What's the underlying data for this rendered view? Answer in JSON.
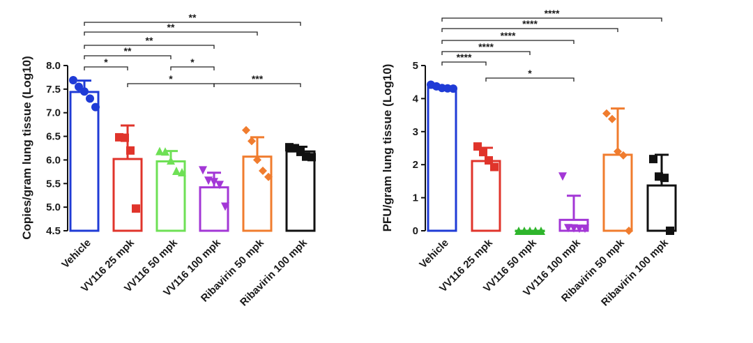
{
  "chart_data": [
    {
      "type": "bar",
      "ylabel": "Copies/gram lung tissue (Log10)",
      "ylim": [
        4.5,
        8.0
      ],
      "yticks": [
        4.5,
        5.0,
        5.5,
        6.0,
        6.5,
        7.0,
        7.5,
        8.0
      ],
      "ytick_labels": [
        "4.5",
        "5.0",
        "5.5",
        "6.0",
        "6.5",
        "7.0",
        "7.5",
        "8.0"
      ],
      "categories": [
        "Vehicle",
        "VV116 25 mpk",
        "VV116 50 mpk",
        "VV116 100 mpk",
        "Ribavirin 50 mpk",
        "Ribavirin 100 mpk"
      ],
      "values": [
        7.44,
        6.02,
        5.97,
        5.42,
        6.07,
        6.18
      ],
      "errors": [
        0.24,
        0.71,
        0.22,
        0.31,
        0.41,
        0.1
      ],
      "points": [
        [
          7.69,
          7.55,
          7.45,
          7.3,
          7.12
        ],
        [
          6.48,
          6.47,
          6.2,
          4.97
        ],
        [
          6.19,
          6.18,
          5.99,
          5.77,
          5.74
        ],
        [
          5.78,
          5.56,
          5.53,
          5.47,
          5.01
        ],
        [
          6.63,
          6.4,
          6.0,
          5.77,
          5.64
        ],
        [
          6.27,
          6.25,
          6.17,
          6.07,
          6.06
        ]
      ],
      "markers": [
        "circle",
        "square",
        "triangle-up",
        "triangle-down",
        "diamond",
        "square"
      ],
      "colors": [
        "#1f3bd6",
        "#e0342b",
        "#6ee055",
        "#a337d6",
        "#f07c2e",
        "#111111"
      ],
      "comparisons": [
        {
          "from": 0,
          "to": 1,
          "label": "*"
        },
        {
          "from": 2,
          "to": 3,
          "label": "*"
        },
        {
          "from": 1,
          "to": 3,
          "label": "*"
        },
        {
          "from": 3,
          "to": 5,
          "label": "***"
        },
        {
          "from": 0,
          "to": 2,
          "label": "**"
        },
        {
          "from": 0,
          "to": 3,
          "label": "**"
        },
        {
          "from": 0,
          "to": 4,
          "label": "**"
        },
        {
          "from": 0,
          "to": 5,
          "label": "**"
        }
      ]
    },
    {
      "type": "bar",
      "ylabel": "PFU/gram lung tissue (Log10)",
      "ylim": [
        0,
        5
      ],
      "yticks": [
        0,
        1,
        2,
        3,
        4,
        5
      ],
      "ytick_labels": [
        "0",
        "1",
        "2",
        "3",
        "4",
        "5"
      ],
      "categories": [
        "Vehicle",
        "VV116 25 mpk",
        "VV116 50 mpk",
        "VV116 100 mpk",
        "Ribavirin 50 mpk",
        "Ribavirin 100 mpk"
      ],
      "values": [
        4.33,
        2.11,
        0.0,
        0.33,
        2.3,
        1.37
      ],
      "errors": [
        0.05,
        0.4,
        0.0,
        0.73,
        1.4,
        0.93
      ],
      "points": [
        [
          4.42,
          4.37,
          4.32,
          4.31,
          4.3
        ],
        [
          2.55,
          2.38,
          2.13,
          1.93
        ],
        [
          0.0,
          0.0,
          0.0,
          0.0,
          0.0
        ],
        [
          1.64,
          0.08,
          0.07,
          0.06,
          0.06
        ],
        [
          3.55,
          3.38,
          2.4,
          2.28,
          0.0
        ],
        [
          2.17,
          1.64,
          1.6,
          0.0
        ]
      ],
      "markers": [
        "circle",
        "square",
        "triangle-up",
        "triangle-down",
        "diamond",
        "square"
      ],
      "colors": [
        "#1f3bd6",
        "#e0342b",
        "#2fb52c",
        "#a337d6",
        "#f07c2e",
        "#111111"
      ],
      "comparisons": [
        {
          "from": 0,
          "to": 1,
          "label": "****"
        },
        {
          "from": 1,
          "to": 3,
          "label": "*"
        },
        {
          "from": 0,
          "to": 2,
          "label": "****"
        },
        {
          "from": 0,
          "to": 3,
          "label": "****"
        },
        {
          "from": 0,
          "to": 4,
          "label": "****"
        },
        {
          "from": 0,
          "to": 5,
          "label": "****"
        }
      ]
    }
  ]
}
